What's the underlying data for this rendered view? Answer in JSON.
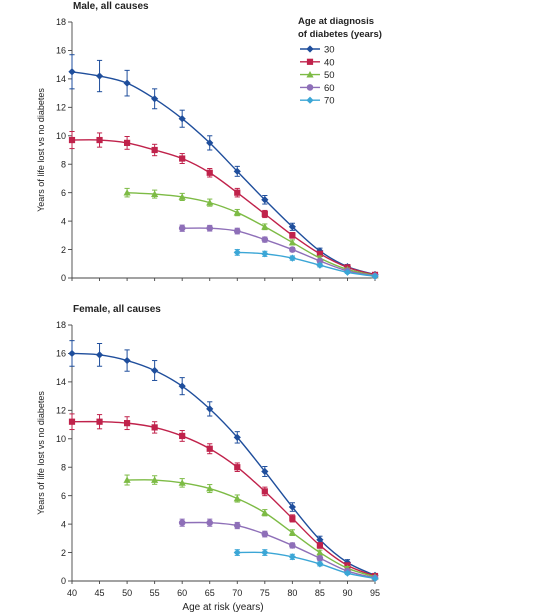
{
  "colors": {
    "30": "#1f4e9c",
    "40": "#c0224b",
    "50": "#7dbb45",
    "60": "#8e6fb8",
    "70": "#3ba6d6",
    "axis": "#444444"
  },
  "legend": {
    "title_line1": "Age at diagnosis",
    "title_line2": "of diabetes (years)",
    "entries": [
      "30",
      "40",
      "50",
      "60",
      "70"
    ],
    "placement": "top-right of male panel"
  },
  "chart_data": [
    {
      "type": "line",
      "title": "Male, all causes",
      "xlabel": "",
      "ylabel": "Years of life lost vs no diabetes",
      "ylim": [
        0,
        18
      ],
      "yticks": [
        0,
        2,
        4,
        6,
        8,
        10,
        12,
        14,
        16,
        18
      ],
      "xlim": [
        40,
        95
      ],
      "xticks": [],
      "grid": false,
      "series": [
        {
          "name": "30",
          "marker": "diamond",
          "x": [
            40,
            45,
            50,
            55,
            60,
            65,
            70,
            75,
            80,
            85,
            90,
            95
          ],
          "y": [
            14.5,
            14.2,
            13.7,
            12.6,
            11.2,
            9.5,
            7.5,
            5.5,
            3.6,
            1.9,
            0.8,
            0.25
          ],
          "err": [
            1.2,
            1.1,
            0.9,
            0.7,
            0.6,
            0.5,
            0.35,
            0.3,
            0.25,
            0.2,
            0.15,
            0.1
          ]
        },
        {
          "name": "40",
          "marker": "square",
          "x": [
            40,
            45,
            50,
            55,
            60,
            65,
            70,
            75,
            80,
            85,
            90,
            95
          ],
          "y": [
            9.7,
            9.7,
            9.5,
            9.0,
            8.4,
            7.4,
            6.0,
            4.5,
            3.0,
            1.7,
            0.75,
            0.22
          ],
          "err": [
            0.6,
            0.5,
            0.45,
            0.4,
            0.35,
            0.3,
            0.3,
            0.25,
            0.2,
            0.15,
            0.1,
            0.08
          ]
        },
        {
          "name": "50",
          "marker": "triangle",
          "x": [
            50,
            55,
            60,
            65,
            70,
            75,
            80,
            85,
            90,
            95
          ],
          "y": [
            6.0,
            5.9,
            5.7,
            5.3,
            4.6,
            3.6,
            2.5,
            1.4,
            0.6,
            0.18
          ],
          "err": [
            0.3,
            0.28,
            0.25,
            0.25,
            0.22,
            0.2,
            0.18,
            0.15,
            0.1,
            0.07
          ]
        },
        {
          "name": "60",
          "marker": "circle",
          "x": [
            60,
            65,
            70,
            75,
            80,
            85,
            90,
            95
          ],
          "y": [
            3.5,
            3.5,
            3.3,
            2.7,
            2.0,
            1.2,
            0.5,
            0.15
          ],
          "err": [
            0.22,
            0.2,
            0.2,
            0.18,
            0.15,
            0.12,
            0.1,
            0.06
          ]
        },
        {
          "name": "70",
          "marker": "diamond",
          "x": [
            70,
            75,
            80,
            85,
            90,
            95
          ],
          "y": [
            1.8,
            1.7,
            1.4,
            0.9,
            0.4,
            0.12
          ],
          "err": [
            0.2,
            0.18,
            0.15,
            0.12,
            0.08,
            0.05
          ]
        }
      ]
    },
    {
      "type": "line",
      "title": "Female, all causes",
      "xlabel": "Age at risk (years)",
      "ylabel": "Years of life lost vs no diabetes",
      "ylim": [
        0,
        18
      ],
      "yticks": [
        0,
        2,
        4,
        6,
        8,
        10,
        12,
        14,
        16,
        18
      ],
      "xlim": [
        40,
        95
      ],
      "xticks": [
        40,
        45,
        50,
        55,
        60,
        65,
        70,
        75,
        80,
        85,
        90,
        95
      ],
      "grid": false,
      "series": [
        {
          "name": "30",
          "marker": "diamond",
          "x": [
            40,
            45,
            50,
            55,
            60,
            65,
            70,
            75,
            80,
            85,
            90,
            95
          ],
          "y": [
            16.0,
            15.9,
            15.5,
            14.8,
            13.7,
            12.1,
            10.1,
            7.7,
            5.2,
            2.9,
            1.3,
            0.4
          ],
          "err": [
            0.9,
            0.8,
            0.75,
            0.7,
            0.6,
            0.5,
            0.4,
            0.35,
            0.3,
            0.25,
            0.2,
            0.12
          ]
        },
        {
          "name": "40",
          "marker": "square",
          "x": [
            40,
            45,
            50,
            55,
            60,
            65,
            70,
            75,
            80,
            85,
            90,
            95
          ],
          "y": [
            11.2,
            11.2,
            11.1,
            10.8,
            10.2,
            9.3,
            8.0,
            6.3,
            4.4,
            2.5,
            1.1,
            0.35
          ],
          "err": [
            0.55,
            0.5,
            0.45,
            0.4,
            0.38,
            0.35,
            0.3,
            0.3,
            0.25,
            0.2,
            0.15,
            0.1
          ]
        },
        {
          "name": "50",
          "marker": "triangle",
          "x": [
            50,
            55,
            60,
            65,
            70,
            75,
            80,
            85,
            90,
            95
          ],
          "y": [
            7.1,
            7.1,
            6.9,
            6.5,
            5.8,
            4.8,
            3.4,
            2.0,
            0.9,
            0.3
          ],
          "err": [
            0.35,
            0.3,
            0.3,
            0.28,
            0.25,
            0.22,
            0.2,
            0.17,
            0.12,
            0.08
          ]
        },
        {
          "name": "60",
          "marker": "circle",
          "x": [
            60,
            65,
            70,
            75,
            80,
            85,
            90,
            95
          ],
          "y": [
            4.1,
            4.1,
            3.9,
            3.3,
            2.5,
            1.6,
            0.7,
            0.22
          ],
          "err": [
            0.25,
            0.25,
            0.22,
            0.2,
            0.18,
            0.15,
            0.1,
            0.06
          ]
        },
        {
          "name": "70",
          "marker": "diamond",
          "x": [
            70,
            75,
            80,
            85,
            90,
            95
          ],
          "y": [
            2.0,
            2.0,
            1.7,
            1.2,
            0.55,
            0.18
          ],
          "err": [
            0.2,
            0.2,
            0.18,
            0.14,
            0.1,
            0.06
          ]
        }
      ]
    }
  ]
}
